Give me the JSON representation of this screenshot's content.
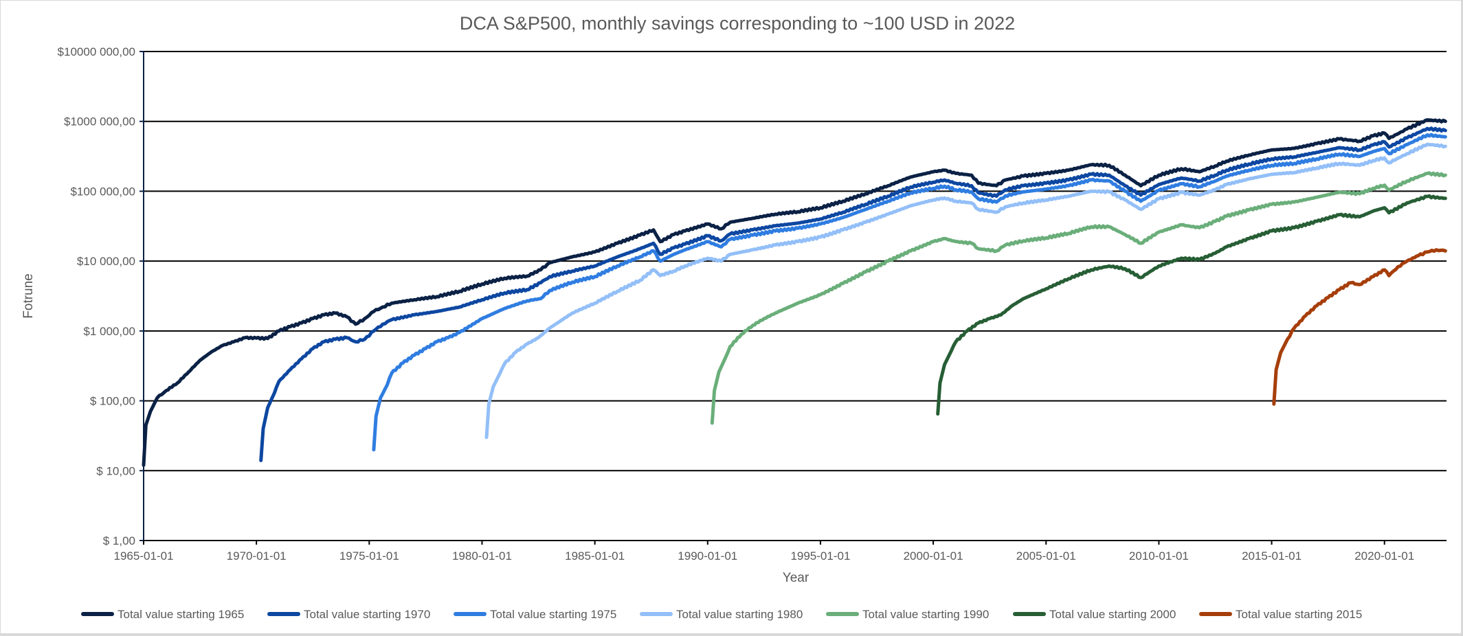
{
  "chart_data": {
    "type": "line",
    "title": "DCA S&P500, monthly savings corresponding to ~100 USD in 2022",
    "xlabel": "Year",
    "ylabel": "Fotrune",
    "y_scale": "log",
    "ylim": [
      1,
      10000000
    ],
    "xlim": [
      "1965-01-01",
      "2022-09-01"
    ],
    "grid": true,
    "legend_position": "bottom",
    "y_ticks": [
      {
        "value": 1,
        "label": "$ 1,00"
      },
      {
        "value": 10,
        "label": "$ 10,00"
      },
      {
        "value": 100,
        "label": "$ 100,00"
      },
      {
        "value": 1000,
        "label": "$1 000,00"
      },
      {
        "value": 10000,
        "label": "$10 000,00"
      },
      {
        "value": 100000,
        "label": "$100 000,00"
      },
      {
        "value": 1000000,
        "label": "$1000 000,00"
      },
      {
        "value": 10000000,
        "label": "$10000 000,00"
      }
    ],
    "x_ticks": [
      {
        "value": 1965,
        "label": "1965-01-01"
      },
      {
        "value": 1970,
        "label": "1970-01-01"
      },
      {
        "value": 1975,
        "label": "1975-01-01"
      },
      {
        "value": 1980,
        "label": "1980-01-01"
      },
      {
        "value": 1985,
        "label": "1985-01-01"
      },
      {
        "value": 1990,
        "label": "1990-01-01"
      },
      {
        "value": 1995,
        "label": "1995-01-01"
      },
      {
        "value": 2000,
        "label": "2000-01-01"
      },
      {
        "value": 2005,
        "label": "2005-01-01"
      },
      {
        "value": 2010,
        "label": "2010-01-01"
      },
      {
        "value": 2015,
        "label": "2015-01-01"
      },
      {
        "value": 2020,
        "label": "2020-01-01"
      }
    ],
    "series": [
      {
        "name": "Total value starting 1965",
        "color": "#0b2145",
        "x": [
          1965.0,
          1965.1,
          1965.3,
          1965.6,
          1966.0,
          1966.5,
          1967.0,
          1967.5,
          1968.0,
          1968.5,
          1969.0,
          1969.5,
          1970.0,
          1970.5,
          1971.0,
          1971.5,
          1972.0,
          1972.5,
          1973.0,
          1973.5,
          1974.0,
          1974.4,
          1974.8,
          1975.2,
          1975.6,
          1976.0,
          1977.0,
          1978.0,
          1979.0,
          1980.0,
          1981.0,
          1982.0,
          1982.6,
          1983.0,
          1984.0,
          1985.0,
          1986.0,
          1987.0,
          1987.6,
          1987.9,
          1988.5,
          1989.0,
          1990.0,
          1990.6,
          1991.0,
          1992.0,
          1993.0,
          1994.0,
          1995.0,
          1996.0,
          1997.0,
          1998.0,
          1999.0,
          2000.0,
          2000.5,
          2001.0,
          2001.7,
          2002.0,
          2002.8,
          2003.2,
          2004.0,
          2005.0,
          2006.0,
          2007.0,
          2007.8,
          2008.5,
          2009.2,
          2010.0,
          2011.0,
          2011.8,
          2012.5,
          2013.0,
          2014.0,
          2015.0,
          2016.0,
          2017.0,
          2018.0,
          2018.9,
          2019.5,
          2020.0,
          2020.2,
          2021.0,
          2021.9,
          2022.7
        ],
        "values": [
          12,
          45,
          70,
          110,
          140,
          180,
          260,
          380,
          500,
          620,
          700,
          800,
          790,
          780,
          1000,
          1150,
          1300,
          1500,
          1700,
          1800,
          1600,
          1250,
          1500,
          1900,
          2200,
          2500,
          2800,
          3100,
          3700,
          4700,
          5700,
          6100,
          7500,
          9500,
          11500,
          13500,
          18000,
          23500,
          28000,
          19000,
          24000,
          27000,
          34000,
          29000,
          36000,
          41000,
          47000,
          51000,
          58000,
          72000,
          92000,
          120000,
          160000,
          190000,
          200000,
          180000,
          170000,
          130000,
          120000,
          145000,
          165000,
          180000,
          200000,
          240000,
          235000,
          170000,
          120000,
          170000,
          210000,
          190000,
          230000,
          270000,
          330000,
          390000,
          410000,
          480000,
          560000,
          520000,
          620000,
          680000,
          570000,
          780000,
          1050000,
          1000000
        ]
      },
      {
        "name": "Total value starting 1970",
        "color": "#0d47a1",
        "x": [
          1970.2,
          1970.3,
          1970.5,
          1970.8,
          1971.0,
          1971.5,
          1972.0,
          1972.5,
          1973.0,
          1973.5,
          1974.0,
          1974.4,
          1974.8,
          1975.2,
          1975.6,
          1976.0,
          1977.0,
          1978.0,
          1979.0,
          1980.0,
          1981.0,
          1982.0,
          1982.6,
          1983.0,
          1984.0,
          1985.0,
          1986.0,
          1987.0,
          1987.6,
          1987.9,
          1988.5,
          1989.0,
          1990.0,
          1990.6,
          1991.0,
          1992.0,
          1993.0,
          1994.0,
          1995.0,
          1996.0,
          1997.0,
          1998.0,
          1999.0,
          2000.0,
          2000.5,
          2001.0,
          2001.7,
          2002.0,
          2002.8,
          2003.2,
          2004.0,
          2005.0,
          2006.0,
          2007.0,
          2007.8,
          2008.5,
          2009.2,
          2010.0,
          2011.0,
          2011.8,
          2012.5,
          2013.0,
          2014.0,
          2015.0,
          2016.0,
          2017.0,
          2018.0,
          2018.9,
          2019.5,
          2020.0,
          2020.2,
          2021.0,
          2021.9,
          2022.7
        ],
        "values": [
          14,
          40,
          80,
          130,
          190,
          280,
          400,
          560,
          700,
          760,
          800,
          700,
          760,
          1000,
          1250,
          1450,
          1700,
          1900,
          2200,
          2800,
          3500,
          3900,
          4900,
          6000,
          7200,
          8500,
          11500,
          15000,
          18000,
          12500,
          15500,
          17500,
          23000,
          19500,
          24500,
          28000,
          32000,
          35000,
          40000,
          50000,
          65000,
          85000,
          115000,
          135000,
          145000,
          130000,
          120000,
          95000,
          85000,
          105000,
          120000,
          130000,
          145000,
          175000,
          170000,
          120000,
          88000,
          125000,
          155000,
          140000,
          170000,
          200000,
          245000,
          290000,
          310000,
          360000,
          420000,
          390000,
          460000,
          510000,
          430000,
          580000,
          790000,
          740000
        ]
      },
      {
        "name": "Total value starting 1975",
        "color": "#2f7de1",
        "x": [
          1975.2,
          1975.3,
          1975.5,
          1975.8,
          1976.0,
          1976.5,
          1977.0,
          1977.5,
          1978.0,
          1978.5,
          1979.0,
          1980.0,
          1981.0,
          1982.0,
          1982.6,
          1983.0,
          1984.0,
          1985.0,
          1986.0,
          1987.0,
          1987.6,
          1987.9,
          1988.5,
          1989.0,
          1990.0,
          1990.6,
          1991.0,
          1992.0,
          1993.0,
          1994.0,
          1995.0,
          1996.0,
          1997.0,
          1998.0,
          1999.0,
          2000.0,
          2000.5,
          2001.0,
          2001.7,
          2002.0,
          2002.8,
          2003.2,
          2004.0,
          2005.0,
          2006.0,
          2007.0,
          2007.8,
          2008.5,
          2009.2,
          2010.0,
          2011.0,
          2011.8,
          2012.5,
          2013.0,
          2014.0,
          2015.0,
          2016.0,
          2017.0,
          2018.0,
          2018.9,
          2019.5,
          2020.0,
          2020.2,
          2021.0,
          2021.9,
          2022.7
        ],
        "values": [
          20,
          60,
          110,
          170,
          250,
          350,
          450,
          560,
          700,
          800,
          950,
          1500,
          2100,
          2700,
          2900,
          3800,
          5000,
          6000,
          8500,
          11500,
          14000,
          10000,
          12500,
          14500,
          19000,
          16000,
          20500,
          23500,
          27000,
          29500,
          34000,
          42000,
          55000,
          72000,
          95000,
          110000,
          118000,
          105000,
          98000,
          78000,
          70000,
          86000,
          98000,
          107000,
          120000,
          145000,
          140000,
          100000,
          72000,
          103000,
          128000,
          116000,
          140000,
          165000,
          200000,
          235000,
          250000,
          290000,
          340000,
          315000,
          370000,
          410000,
          345000,
          465000,
          640000,
          600000
        ]
      },
      {
        "name": "Total value starting 1980",
        "color": "#93bff8",
        "x": [
          1980.2,
          1980.3,
          1980.5,
          1980.8,
          1981.0,
          1981.5,
          1982.0,
          1982.5,
          1983.0,
          1984.0,
          1985.0,
          1986.0,
          1987.0,
          1987.6,
          1987.9,
          1988.5,
          1989.0,
          1990.0,
          1990.6,
          1991.0,
          1992.0,
          1993.0,
          1994.0,
          1995.0,
          1996.0,
          1997.0,
          1998.0,
          1999.0,
          2000.0,
          2000.5,
          2001.0,
          2001.7,
          2002.0,
          2002.8,
          2003.2,
          2004.0,
          2005.0,
          2006.0,
          2007.0,
          2007.8,
          2008.5,
          2009.2,
          2010.0,
          2011.0,
          2011.8,
          2012.5,
          2013.0,
          2014.0,
          2015.0,
          2016.0,
          2017.0,
          2018.0,
          2018.9,
          2019.5,
          2020.0,
          2020.2,
          2021.0,
          2021.9,
          2022.7
        ],
        "values": [
          30,
          90,
          160,
          250,
          340,
          500,
          650,
          800,
          1100,
          1800,
          2500,
          3700,
          5300,
          7500,
          6200,
          7200,
          8500,
          11000,
          10000,
          12500,
          14500,
          17000,
          19000,
          22000,
          28000,
          36000,
          47000,
          62000,
          75000,
          80000,
          72000,
          68000,
          55000,
          50000,
          60000,
          68000,
          75000,
          85000,
          100000,
          98000,
          75000,
          55000,
          78000,
          96000,
          88000,
          105000,
          125000,
          150000,
          175000,
          185000,
          215000,
          250000,
          235000,
          275000,
          300000,
          255000,
          345000,
          470000,
          440000
        ]
      },
      {
        "name": "Total value starting  1990",
        "color": "#6aae7a",
        "x": [
          1990.2,
          1990.3,
          1990.5,
          1990.8,
          1991.0,
          1991.5,
          1992.0,
          1992.5,
          1993.0,
          1994.0,
          1995.0,
          1996.0,
          1997.0,
          1998.0,
          1999.0,
          2000.0,
          2000.5,
          2001.0,
          2001.7,
          2002.0,
          2002.8,
          2003.2,
          2004.0,
          2005.0,
          2006.0,
          2007.0,
          2007.8,
          2008.5,
          2009.2,
          2010.0,
          2011.0,
          2011.8,
          2012.5,
          2013.0,
          2014.0,
          2015.0,
          2016.0,
          2017.0,
          2018.0,
          2018.9,
          2019.5,
          2020.0,
          2020.2,
          2021.0,
          2021.9,
          2022.7
        ],
        "values": [
          48,
          140,
          260,
          420,
          600,
          900,
          1200,
          1500,
          1800,
          2500,
          3300,
          4800,
          7000,
          10000,
          14000,
          19000,
          21000,
          19000,
          18000,
          15000,
          14000,
          17000,
          19500,
          21500,
          25000,
          31000,
          31000,
          24000,
          18000,
          26000,
          33000,
          30000,
          37000,
          44000,
          54000,
          65000,
          70000,
          82000,
          97000,
          92000,
          110000,
          122000,
          104000,
          140000,
          180000,
          170000
        ]
      },
      {
        "name": "Total value starting 2000",
        "color": "#275e35",
        "x": [
          2000.2,
          2000.3,
          2000.5,
          2000.8,
          2001.0,
          2001.5,
          2002.0,
          2002.5,
          2003.0,
          2003.5,
          2004.0,
          2005.0,
          2006.0,
          2007.0,
          2007.8,
          2008.5,
          2009.2,
          2010.0,
          2011.0,
          2011.8,
          2012.5,
          2013.0,
          2014.0,
          2015.0,
          2016.0,
          2017.0,
          2018.0,
          2018.9,
          2019.5,
          2020.0,
          2020.2,
          2021.0,
          2021.9,
          2022.7
        ],
        "values": [
          65,
          180,
          330,
          520,
          700,
          1000,
          1300,
          1500,
          1700,
          2300,
          2900,
          4000,
          5600,
          7500,
          8500,
          7800,
          5800,
          8500,
          11000,
          10500,
          13000,
          16000,
          21000,
          27000,
          30000,
          37000,
          46000,
          43000,
          52000,
          58000,
          49000,
          68000,
          84000,
          79000
        ]
      },
      {
        "name": "Total value starting 2015",
        "color": "#a63e0a",
        "x": [
          2015.1,
          2015.2,
          2015.4,
          2015.7,
          2016.0,
          2016.5,
          2017.0,
          2017.5,
          2018.0,
          2018.5,
          2018.9,
          2019.5,
          2020.0,
          2020.2,
          2020.6,
          2021.0,
          2021.5,
          2021.9,
          2022.3,
          2022.7
        ],
        "values": [
          90,
          280,
          490,
          760,
          1100,
          1650,
          2300,
          3000,
          3900,
          4900,
          4600,
          6000,
          7500,
          6200,
          8300,
          10000,
          12000,
          13500,
          14500,
          14000
        ]
      }
    ]
  }
}
